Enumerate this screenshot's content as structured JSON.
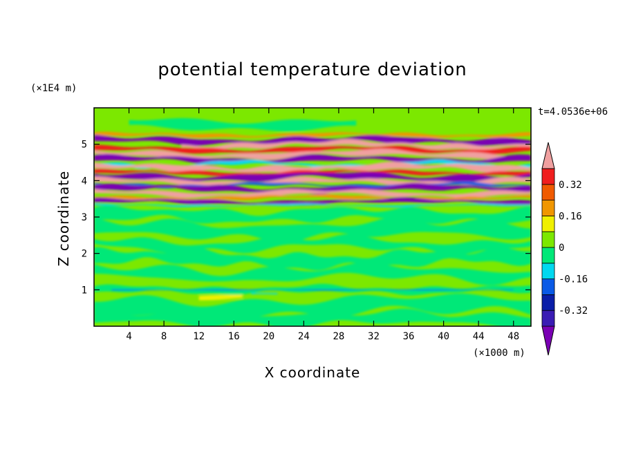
{
  "chart_data": {
    "type": "heatmap",
    "title": "potential temperature deviation",
    "xlabel": "X coordinate",
    "ylabel": "Z coordinate",
    "x_multiplier": "(×1000 m)",
    "y_multiplier": "(×1E4 m)",
    "time_label": "t=4.0536e+06",
    "xlim": [
      0,
      50
    ],
    "ylim": [
      0,
      6
    ],
    "xticks": [
      4,
      8,
      12,
      16,
      20,
      24,
      28,
      32,
      36,
      40,
      44,
      48
    ],
    "yticks": [
      1,
      2,
      3,
      4,
      5
    ],
    "colorbar": {
      "levels": [
        -0.4,
        -0.32,
        -0.24,
        -0.16,
        -0.08,
        0,
        0.08,
        0.16,
        0.24,
        0.32,
        0.4
      ],
      "tick_labels": [
        {
          "value": 0.32,
          "text": "0.32"
        },
        {
          "value": 0.16,
          "text": "0.16"
        },
        {
          "value": 0,
          "text": "0"
        },
        {
          "value": -0.16,
          "text": "-0.16"
        },
        {
          "value": -0.32,
          "text": "-0.32"
        }
      ],
      "colors": [
        "#7a00b4",
        "#3a1cb4",
        "#0a1ea8",
        "#0a5ae6",
        "#00d8f0",
        "#00e878",
        "#7ce800",
        "#f0f000",
        "#f09600",
        "#f05a00",
        "#f01e1e",
        "#f0a0a0"
      ]
    },
    "background_level": "#7ce800"
  }
}
